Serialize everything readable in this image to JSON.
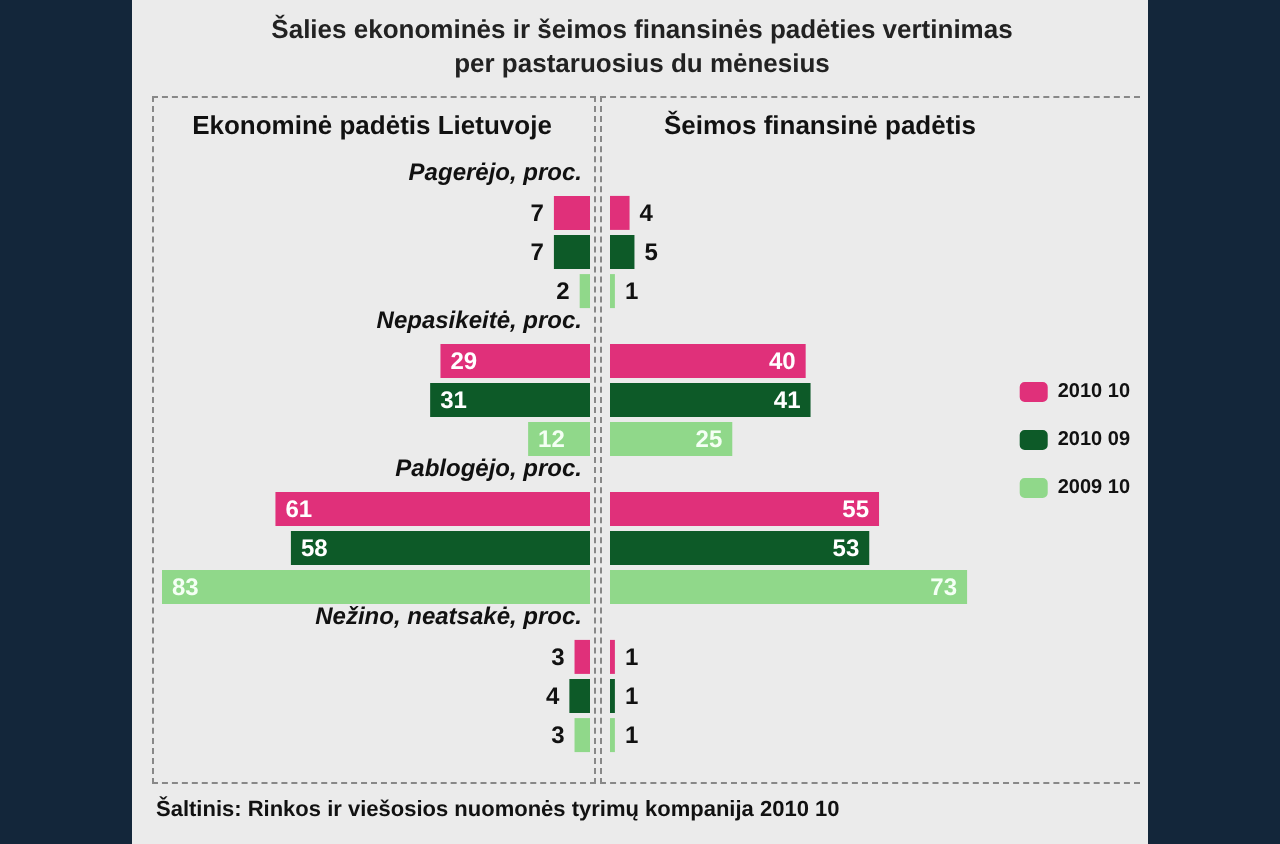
{
  "chart_data": [
    {
      "type": "bar",
      "orientation": "horizontal",
      "title": "Šalies ekonominės ir šeimos finansinės padėties vertinimas per pastaruosius du mėnesius",
      "subtitle": "Ekonominė padėtis Lietuvoje",
      "categories": [
        "Pagerėjo, proc.",
        "Nepasikeitė, proc.",
        "Pablogėjo, proc.",
        "Nežino, neatsakė, proc."
      ],
      "series": [
        {
          "color": "#e0307a",
          "values": [
            7,
            29,
            61,
            3
          ]
        },
        {
          "color": "#0d5a28",
          "values": [
            7,
            31,
            58,
            4
          ]
        },
        {
          "color": "#90d88a",
          "values": [
            2,
            12,
            83,
            3
          ]
        }
      ],
      "data_labels": true,
      "tick_labels": "y",
      "legend": false,
      "annotations": [
        "Šaltinis: Rinkos ir viešosios nuomonės tyrimų kompanija 2010 10"
      ]
    },
    {
      "type": "bar",
      "orientation": "horizontal",
      "subtitle": "Šeimos finansinė padėtis",
      "categories": [
        null,
        null,
        null,
        null
      ],
      "series": [
        {
          "name": "2010 10",
          "color": "#e0307a",
          "values": [
            4,
            40,
            55,
            1
          ]
        },
        {
          "name": "2010 09",
          "color": "#0d5a28",
          "values": [
            5,
            41,
            53,
            1
          ]
        },
        {
          "name": "2009 10",
          "color": "#90d88a",
          "values": [
            1,
            25,
            73,
            1
          ]
        }
      ],
      "data_labels": true,
      "tick_labels": false,
      "legend": "right"
    }
  ]
}
